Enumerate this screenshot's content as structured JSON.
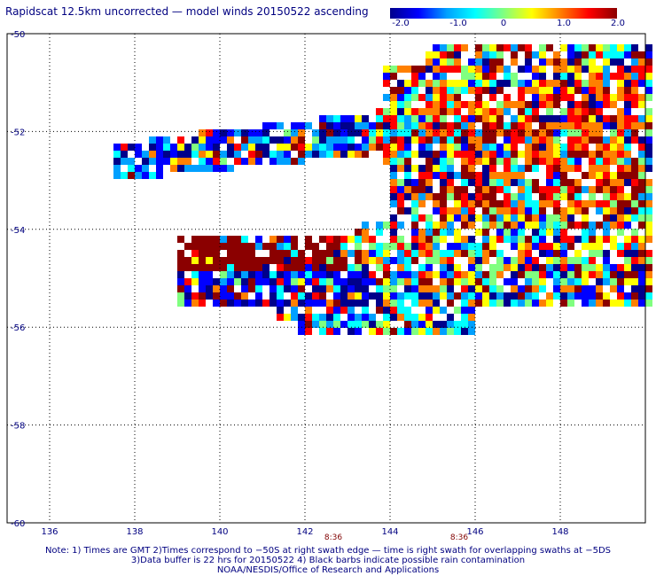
{
  "title": "Rapidscat 12.5km uncorrected — model winds 20150522 ascending",
  "colorbar": {
    "labels": [
      "-2.0",
      "-1.0",
      "0",
      "1.0",
      "2.0"
    ],
    "stops": [
      "#00008b",
      "#0000ff",
      "#00a0ff",
      "#00ffff",
      "#80ff80",
      "#ffff00",
      "#ff8000",
      "#ff0000",
      "#8b0000"
    ]
  },
  "map": {
    "lon_ticks": [
      "136",
      "138",
      "140",
      "142",
      "144",
      "146",
      "148"
    ],
    "lat_ticks": [
      "-50",
      "-52",
      "-54",
      "-56",
      "-58",
      "-60"
    ],
    "lon_range": [
      135,
      150
    ],
    "lat_range": [
      -50,
      -60
    ]
  },
  "times": [
    {
      "label": "8:36",
      "lon": 142.6
    },
    {
      "label": "8:36",
      "lon": 145.6
    }
  ],
  "notes": [
    "Note: 1) Times are GMT 2)Times correspond to −50S at right swath edge — time is right swath for overlapping swaths at −5DS",
    "3)Data buffer is 22 hrs for 20150522 4) Black barbs indicate possible rain contamination",
    "NOAA/NESDIS/Office of Research and Applications"
  ]
}
